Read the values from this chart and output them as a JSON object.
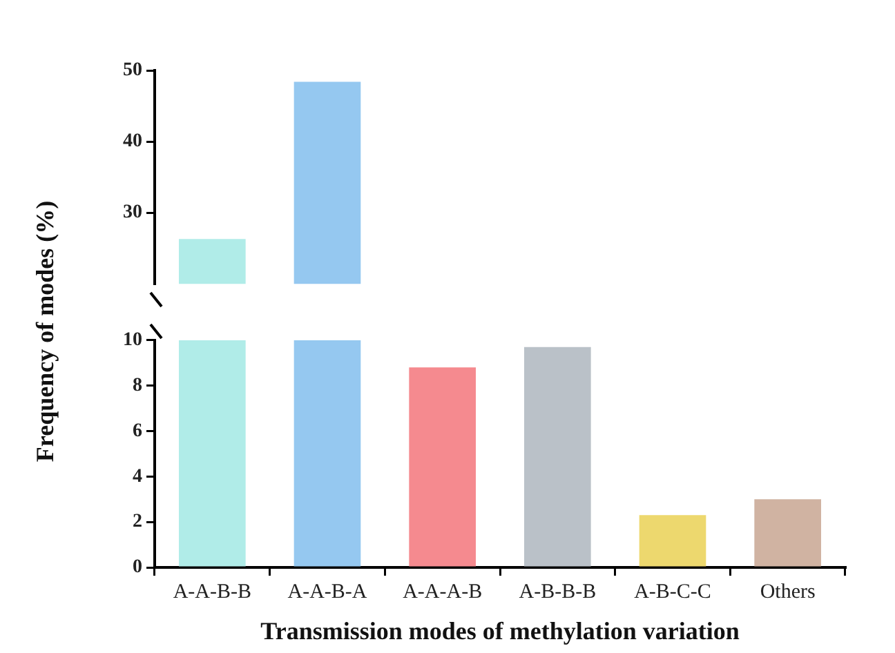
{
  "chart_data": [
    {
      "type": "bar",
      "categories": [
        null,
        null
      ],
      "values": [
        26.3,
        48.4
      ],
      "colors": [
        "#b0ece8",
        "#95c8f0"
      ],
      "ylim": [
        20,
        50
      ],
      "yticks": [
        30,
        40,
        50
      ],
      "tick_labels": "y",
      "legend": false
    },
    {
      "type": "bar",
      "categories": [
        "A-A-B-B",
        "A-A-B-A",
        "A-A-A-B",
        "A-B-B-B",
        "A-B-C-C",
        "Others"
      ],
      "values": [
        10,
        10,
        8.8,
        9.7,
        2.3,
        3.0
      ],
      "colors": [
        "#b0ece8",
        "#95c8f0",
        "#f58a8f",
        "#bac1c8",
        "#edd86e",
        "#d0b3a2"
      ],
      "ylim": [
        0,
        10
      ],
      "yticks": [
        0,
        2,
        4,
        6,
        8,
        10
      ],
      "ylabel": "Frequency of modes (%)",
      "xlabel": "Transmission modes of methylation variation",
      "legend": false
    }
  ]
}
